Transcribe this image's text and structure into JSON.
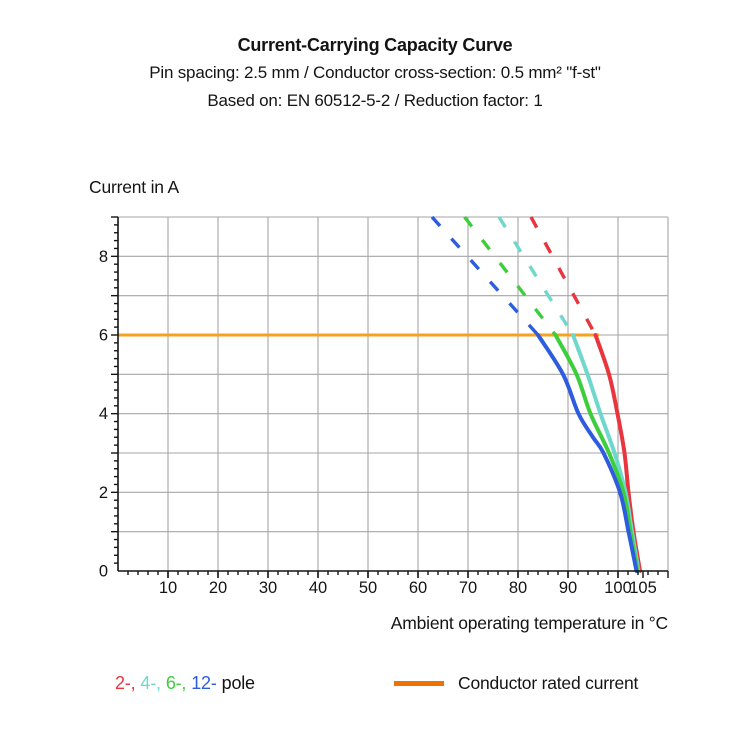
{
  "header": {
    "note": "three centered lines above the chart"
  },
  "legend": {
    "poles": [
      {
        "label": "2-,",
        "color": "#E8353E"
      },
      {
        "label": "4-,",
        "color": "#6FD8CC"
      },
      {
        "label": "6-,",
        "color": "#3DCE3C"
      },
      {
        "label": "12-",
        "color": "#2E5CDE"
      }
    ],
    "poles_suffix": "pole",
    "rated_label": "Conductor rated current",
    "rated_swatch_color": "#EE7203"
  },
  "chart_data": {
    "type": "line",
    "title": "Current-Carrying Capacity Curve",
    "subtitle1": "Pin spacing: 2.5 mm / Conductor cross-section: 0.5 mm² \"f-st\"",
    "subtitle2": "Based on: EN 60512-5-2 / Reduction factor: 1",
    "xlabel": "Ambient operating temperature in °C",
    "ylabel": "Current in A",
    "xlim": [
      0,
      110
    ],
    "ylim": [
      0,
      9
    ],
    "grid": {
      "x_step": 10,
      "y_step": 1,
      "color": "#A6A6A6"
    },
    "minor_ticks": {
      "x_step": 2,
      "y_step": 0.2
    },
    "x_ticks": [
      10,
      20,
      30,
      40,
      50,
      60,
      70,
      80,
      90,
      100,
      105
    ],
    "y_ticks": [
      0,
      2,
      4,
      6,
      8
    ],
    "axis_color": "#141414",
    "legend_position": "bottom",
    "rated_current": {
      "value_a": 6,
      "x_start": 0,
      "x_end": 96.2,
      "color": "#F6A21E"
    },
    "series": [
      {
        "name": "2-pole",
        "color": "#E8353E",
        "dashed": [
          [
            82.6,
            9
          ],
          [
            95.5,
            6
          ]
        ],
        "solid": [
          [
            95.5,
            6
          ],
          [
            98.2,
            5
          ],
          [
            99.9,
            4
          ],
          [
            101.3,
            3
          ],
          [
            102.1,
            2
          ],
          [
            103.1,
            1
          ],
          [
            104.4,
            0
          ]
        ]
      },
      {
        "name": "4-pole",
        "color": "#6FD8CC",
        "dashed": [
          [
            76.2,
            9
          ],
          [
            91,
            6
          ]
        ],
        "solid": [
          [
            91,
            6
          ],
          [
            93.9,
            5
          ],
          [
            96.5,
            4
          ],
          [
            99.3,
            3
          ],
          [
            101.5,
            2
          ],
          [
            102.8,
            1
          ],
          [
            104.1,
            0
          ]
        ]
      },
      {
        "name": "6-pole",
        "color": "#3DCE3C",
        "dashed": [
          [
            69.3,
            9
          ],
          [
            87.5,
            6
          ]
        ],
        "solid": [
          [
            87.5,
            6
          ],
          [
            91.7,
            5
          ],
          [
            94.5,
            4
          ],
          [
            98.2,
            3
          ],
          [
            101.1,
            2
          ],
          [
            102.5,
            1
          ],
          [
            103.9,
            0
          ]
        ]
      },
      {
        "name": "12-pole",
        "color": "#2E5CDE",
        "dashed": [
          [
            62.8,
            9
          ],
          [
            84,
            6
          ]
        ],
        "solid": [
          [
            84,
            6
          ],
          [
            89,
            5
          ],
          [
            92.1,
            4
          ],
          [
            95,
            3.4
          ],
          [
            97.1,
            3
          ],
          [
            100.4,
            2
          ],
          [
            102.1,
            1
          ],
          [
            103.7,
            0
          ]
        ]
      }
    ]
  }
}
